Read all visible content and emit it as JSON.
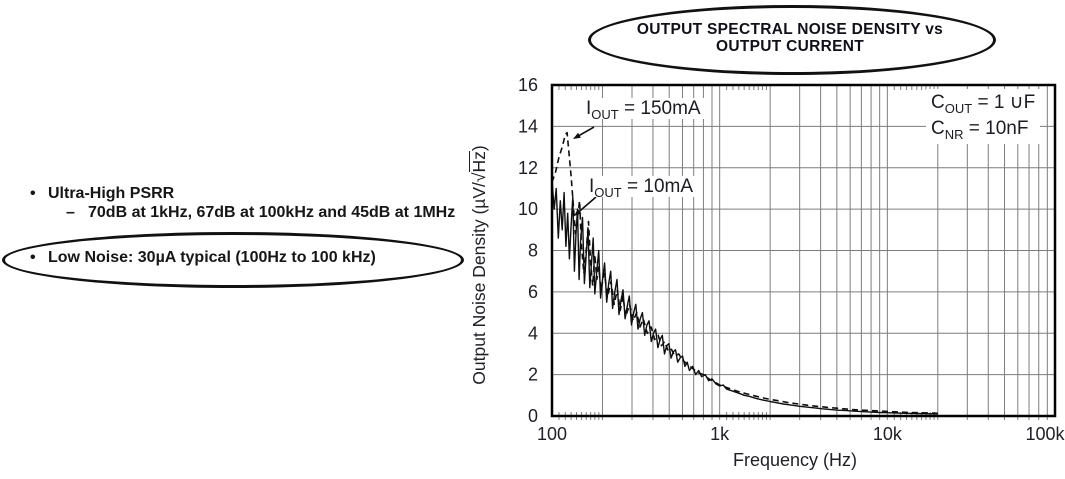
{
  "features": {
    "items": [
      {
        "bullet": "•",
        "text": "Ultra-High PSRR"
      },
      {
        "bullet": "–",
        "text": "70dB at 1kHz, 67dB at 100kHz and 45dB at 1MHz"
      },
      {
        "bullet": "•",
        "text": "Low Noise: 30µA typical (100Hz to 100 kHz)"
      }
    ]
  },
  "chart": {
    "title_line1": "OUTPUT SPECTRAL NOISE DENSITY vs",
    "title_line2": "OUTPUT CURRENT",
    "ylabel_parts": {
      "pre": "Output Noise Density (µV/√",
      "over": "Hz",
      "post": ")"
    },
    "labels": {
      "i150": {
        "pre": "I",
        "sub": "OUT",
        "post": " = 150mA"
      },
      "i10": {
        "pre": "I",
        "sub": "OUT",
        "post": " = 10mA"
      },
      "cout": {
        "pre": "C",
        "sub": "OUT",
        "post": " = 1 ∪F"
      },
      "cnr": {
        "pre": "C",
        "sub": "NR",
        "post": " = 10nF"
      }
    },
    "colors": {
      "curve": "#0f0f0f",
      "grid": "#7d7d7d",
      "border": "#000000",
      "text": "#1f1f26"
    }
  },
  "chart_data": {
    "type": "line",
    "title": "OUTPUT SPECTRAL NOISE DENSITY vs OUTPUT CURRENT",
    "xlabel": "Frequency (Hz)",
    "ylabel": "Output Noise Density (µV/√Hz)",
    "x_scale": "log",
    "xlim": [
      100,
      100000
    ],
    "ylim": [
      0,
      16
    ],
    "x_tick_values": [
      100,
      1000,
      10000,
      100000
    ],
    "x_tick_labels": [
      "100",
      "1k",
      "10k",
      "100k"
    ],
    "y_ticks": [
      0,
      2,
      4,
      6,
      8,
      10,
      12,
      14,
      16
    ],
    "grid": true,
    "legend_position": "inline-annotations",
    "conditions": [
      "COUT = 1 ∪F",
      "CNR = 10nF"
    ],
    "series": [
      {
        "name": "IOUT = 150mA",
        "line_style": "dashed",
        "points": [
          [
            100,
            11.3
          ],
          [
            105,
            11.8
          ],
          [
            110,
            12.5
          ],
          [
            115,
            13.0
          ],
          [
            120,
            13.6
          ],
          [
            123,
            13.7
          ],
          [
            126,
            12.8
          ],
          [
            130,
            11.6
          ],
          [
            134,
            10.2
          ],
          [
            138,
            8.8
          ],
          [
            142,
            9.6
          ],
          [
            146,
            10.4
          ],
          [
            150,
            8.2
          ],
          [
            155,
            6.9
          ],
          [
            160,
            8.0
          ],
          [
            165,
            9.4
          ],
          [
            170,
            7.4
          ],
          [
            175,
            6.3
          ],
          [
            180,
            7.8
          ],
          [
            185,
            6.6
          ],
          [
            190,
            7.2
          ],
          [
            196,
            6.1
          ],
          [
            205,
            6.9
          ],
          [
            215,
            5.8
          ],
          [
            225,
            6.5
          ],
          [
            235,
            5.4
          ],
          [
            245,
            6.1
          ],
          [
            255,
            5.1
          ],
          [
            265,
            5.8
          ],
          [
            275,
            4.8
          ],
          [
            290,
            5.4
          ],
          [
            305,
            4.6
          ],
          [
            320,
            5.0
          ],
          [
            335,
            4.3
          ],
          [
            350,
            4.7
          ],
          [
            370,
            4.0
          ],
          [
            390,
            4.3
          ],
          [
            410,
            3.7
          ],
          [
            430,
            3.9
          ],
          [
            450,
            3.4
          ],
          [
            470,
            3.6
          ],
          [
            490,
            3.2
          ],
          [
            510,
            3.3
          ],
          [
            540,
            2.9
          ],
          [
            570,
            3.0
          ],
          [
            600,
            2.7
          ],
          [
            640,
            2.5
          ],
          [
            690,
            2.3
          ],
          [
            740,
            2.1
          ],
          [
            800,
            2.0
          ],
          [
            860,
            1.8
          ],
          [
            930,
            1.65
          ],
          [
            1000,
            1.5
          ],
          [
            1100,
            1.38
          ],
          [
            1250,
            1.22
          ],
          [
            1400,
            1.1
          ],
          [
            1600,
            0.98
          ],
          [
            1800,
            0.88
          ],
          [
            2000,
            0.8
          ],
          [
            2300,
            0.72
          ],
          [
            2600,
            0.64
          ],
          [
            3000,
            0.57
          ],
          [
            3500,
            0.5
          ],
          [
            4000,
            0.45
          ],
          [
            4600,
            0.4
          ],
          [
            5300,
            0.36
          ],
          [
            6000,
            0.32
          ],
          [
            7000,
            0.28
          ],
          [
            8000,
            0.26
          ],
          [
            9000,
            0.24
          ],
          [
            10000,
            0.22
          ],
          [
            12000,
            0.19
          ],
          [
            14000,
            0.17
          ],
          [
            17000,
            0.15
          ],
          [
            20000,
            0.13
          ]
        ]
      },
      {
        "name": "IOUT = 10mA",
        "line_style": "solid",
        "points": [
          [
            100,
            11.4
          ],
          [
            103,
            10.0
          ],
          [
            106,
            11.0
          ],
          [
            109,
            8.6
          ],
          [
            112,
            10.4
          ],
          [
            115,
            9.0
          ],
          [
            118,
            10.8
          ],
          [
            121,
            8.2
          ],
          [
            124,
            9.8
          ],
          [
            127,
            7.6
          ],
          [
            130,
            9.2
          ],
          [
            133,
            10.6
          ],
          [
            136,
            7.0
          ],
          [
            139,
            8.8
          ],
          [
            142,
            10.0
          ],
          [
            145,
            6.6
          ],
          [
            148,
            8.4
          ],
          [
            152,
            9.6
          ],
          [
            156,
            6.4
          ],
          [
            160,
            7.8
          ],
          [
            164,
            9.0
          ],
          [
            168,
            6.2
          ],
          [
            172,
            7.4
          ],
          [
            176,
            8.6
          ],
          [
            180,
            5.9
          ],
          [
            185,
            7.0
          ],
          [
            190,
            8.0
          ],
          [
            195,
            5.7
          ],
          [
            200,
            6.6
          ],
          [
            206,
            7.4
          ],
          [
            212,
            5.5
          ],
          [
            218,
            6.4
          ],
          [
            224,
            7.0
          ],
          [
            230,
            5.2
          ],
          [
            237,
            6.0
          ],
          [
            244,
            6.6
          ],
          [
            251,
            4.9
          ],
          [
            258,
            5.6
          ],
          [
            265,
            6.1
          ],
          [
            273,
            4.7
          ],
          [
            281,
            5.3
          ],
          [
            289,
            5.8
          ],
          [
            298,
            4.4
          ],
          [
            307,
            5.0
          ],
          [
            316,
            5.4
          ],
          [
            326,
            4.2
          ],
          [
            336,
            4.7
          ],
          [
            346,
            5.0
          ],
          [
            357,
            3.9
          ],
          [
            368,
            4.4
          ],
          [
            379,
            4.6
          ],
          [
            391,
            3.6
          ],
          [
            403,
            4.0
          ],
          [
            415,
            4.2
          ],
          [
            428,
            3.3
          ],
          [
            441,
            3.7
          ],
          [
            455,
            3.9
          ],
          [
            469,
            3.0
          ],
          [
            483,
            3.4
          ],
          [
            498,
            3.5
          ],
          [
            513,
            2.8
          ],
          [
            529,
            3.1
          ],
          [
            545,
            3.2
          ],
          [
            562,
            2.6
          ],
          [
            580,
            2.8
          ],
          [
            600,
            2.9
          ],
          [
            620,
            2.4
          ],
          [
            640,
            2.6
          ],
          [
            660,
            2.2
          ],
          [
            690,
            2.4
          ],
          [
            720,
            2.0
          ],
          [
            750,
            2.2
          ],
          [
            780,
            1.9
          ],
          [
            820,
            2.0
          ],
          [
            860,
            1.7
          ],
          [
            900,
            1.8
          ],
          [
            950,
            1.55
          ],
          [
            1000,
            1.45
          ],
          [
            1050,
            1.5
          ],
          [
            1100,
            1.3
          ],
          [
            1200,
            1.2
          ],
          [
            1300,
            1.1
          ],
          [
            1400,
            1.0
          ],
          [
            1500,
            0.95
          ],
          [
            1650,
            0.85
          ],
          [
            1800,
            0.78
          ],
          [
            2000,
            0.7
          ],
          [
            2200,
            0.64
          ],
          [
            2400,
            0.58
          ],
          [
            2700,
            0.52
          ],
          [
            3000,
            0.47
          ],
          [
            3300,
            0.43
          ],
          [
            3700,
            0.39
          ],
          [
            4100,
            0.35
          ],
          [
            4600,
            0.31
          ],
          [
            5100,
            0.28
          ],
          [
            5700,
            0.26
          ],
          [
            6400,
            0.23
          ],
          [
            7200,
            0.21
          ],
          [
            8000,
            0.19
          ],
          [
            9000,
            0.17
          ],
          [
            10000,
            0.16
          ],
          [
            11500,
            0.14
          ],
          [
            13000,
            0.13
          ],
          [
            15000,
            0.12
          ],
          [
            17000,
            0.11
          ],
          [
            20000,
            0.1
          ]
        ]
      }
    ]
  }
}
